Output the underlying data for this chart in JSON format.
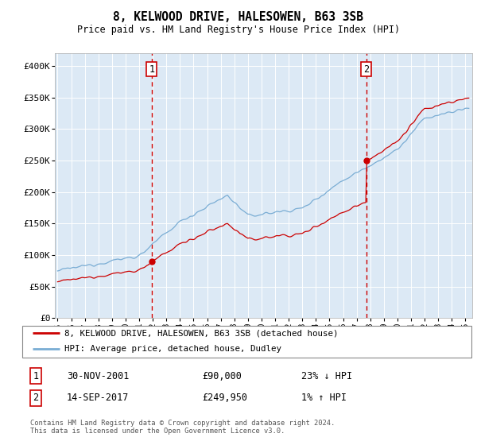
{
  "title": "8, KELWOOD DRIVE, HALESOWEN, B63 3SB",
  "subtitle": "Price paid vs. HM Land Registry's House Price Index (HPI)",
  "ylabel_ticks": [
    "£0",
    "£50K",
    "£100K",
    "£150K",
    "£200K",
    "£250K",
    "£300K",
    "£350K",
    "£400K"
  ],
  "ytick_values": [
    0,
    50000,
    100000,
    150000,
    200000,
    250000,
    300000,
    350000,
    400000
  ],
  "ylim": [
    0,
    420000
  ],
  "xlim_start": 1994.8,
  "xlim_end": 2025.5,
  "plot_bg": "#dce9f5",
  "grid_color": "#ffffff",
  "sale1_date": 2001.92,
  "sale1_price": 90000,
  "sale2_date": 2017.71,
  "sale2_price": 249950,
  "sale_color": "#cc0000",
  "hpi_color": "#7aadd4",
  "legend_entries": [
    "8, KELWOOD DRIVE, HALESOWEN, B63 3SB (detached house)",
    "HPI: Average price, detached house, Dudley"
  ],
  "annotation1_date": "30-NOV-2001",
  "annotation1_price": "£90,000",
  "annotation1_hpi": "23% ↓ HPI",
  "annotation2_date": "14-SEP-2017",
  "annotation2_price": "£249,950",
  "annotation2_hpi": "1% ↑ HPI",
  "footer": "Contains HM Land Registry data © Crown copyright and database right 2024.\nThis data is licensed under the Open Government Licence v3.0.",
  "xtick_years": [
    1995,
    1996,
    1997,
    1998,
    1999,
    2000,
    2001,
    2002,
    2003,
    2004,
    2005,
    2006,
    2007,
    2008,
    2009,
    2010,
    2011,
    2012,
    2013,
    2014,
    2015,
    2016,
    2017,
    2018,
    2019,
    2020,
    2021,
    2022,
    2023,
    2024,
    2025
  ]
}
